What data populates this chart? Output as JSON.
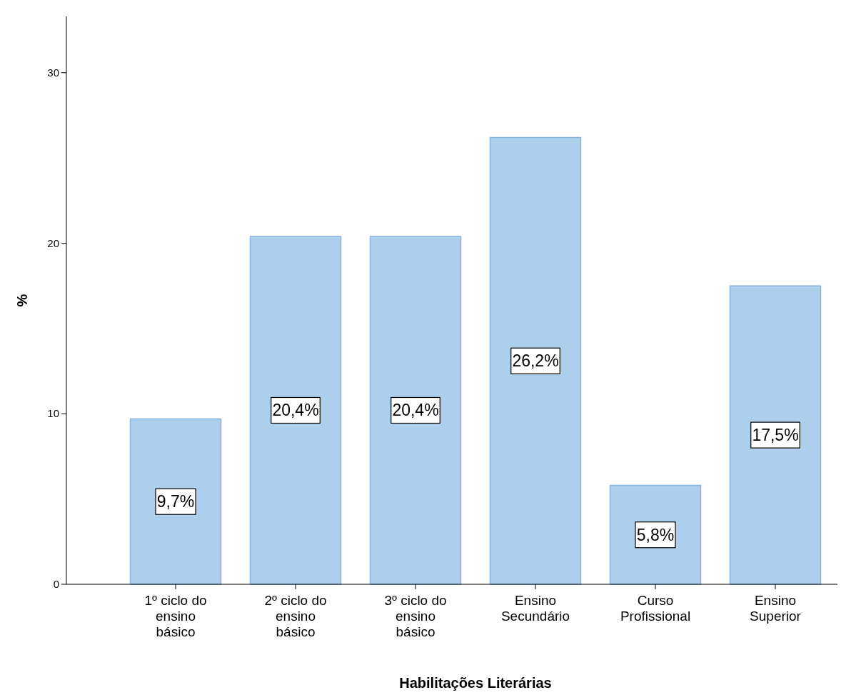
{
  "chart_data": {
    "type": "bar",
    "xlabel": "Habilitações Literárias",
    "ylabel": "%",
    "categories": [
      "1º ciclo do ensino básico",
      "2º ciclo do ensino básico",
      "3º ciclo do ensino básico",
      "Ensino Secundário",
      "Curso Profissional",
      "Ensino Superior"
    ],
    "values": [
      9.7,
      20.4,
      20.4,
      26.2,
      5.8,
      17.5
    ],
    "color": "#aecfec",
    "value_labels": [
      "9,7%",
      "20,4%",
      "20,4%",
      "26,2%",
      "5,8%",
      "17,5%"
    ],
    "ylim": [
      0,
      33.3
    ],
    "yticks": [
      0,
      10,
      20,
      30
    ],
    "grid": false
  }
}
